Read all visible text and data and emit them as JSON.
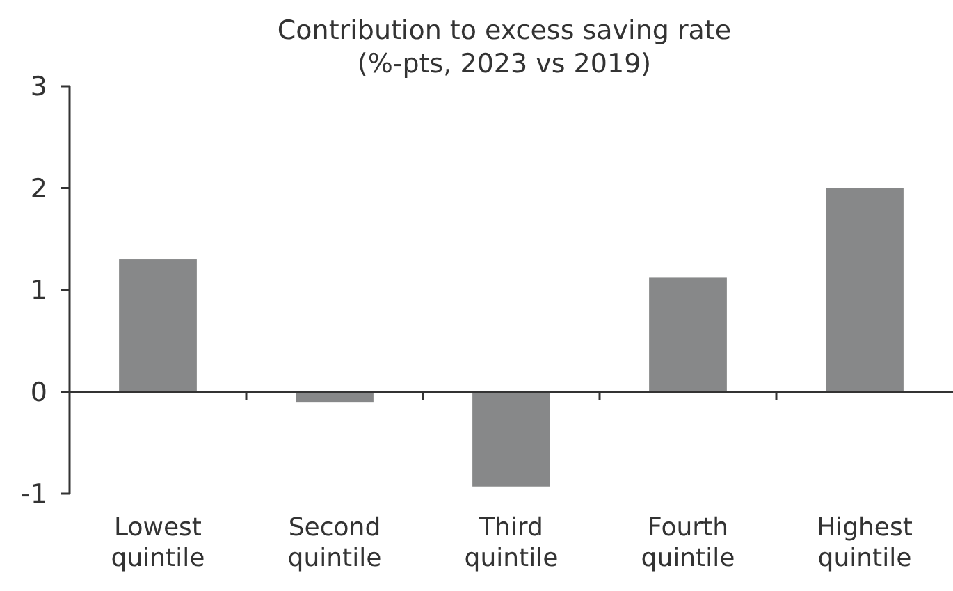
{
  "chart_data": {
    "type": "bar",
    "title": "Contribution to excess saving rate",
    "subtitle": "(%-pts, 2023 vs 2019)",
    "categories": [
      "Lowest quintile",
      "Second quintile",
      "Third quintile",
      "Fourth quintile",
      "Highest quintile"
    ],
    "values": [
      1.3,
      -0.1,
      -0.93,
      1.12,
      2.0
    ],
    "color": "#878889",
    "ylim": [
      -1,
      3
    ],
    "yticks": [
      -1,
      0,
      1,
      2,
      3
    ]
  }
}
